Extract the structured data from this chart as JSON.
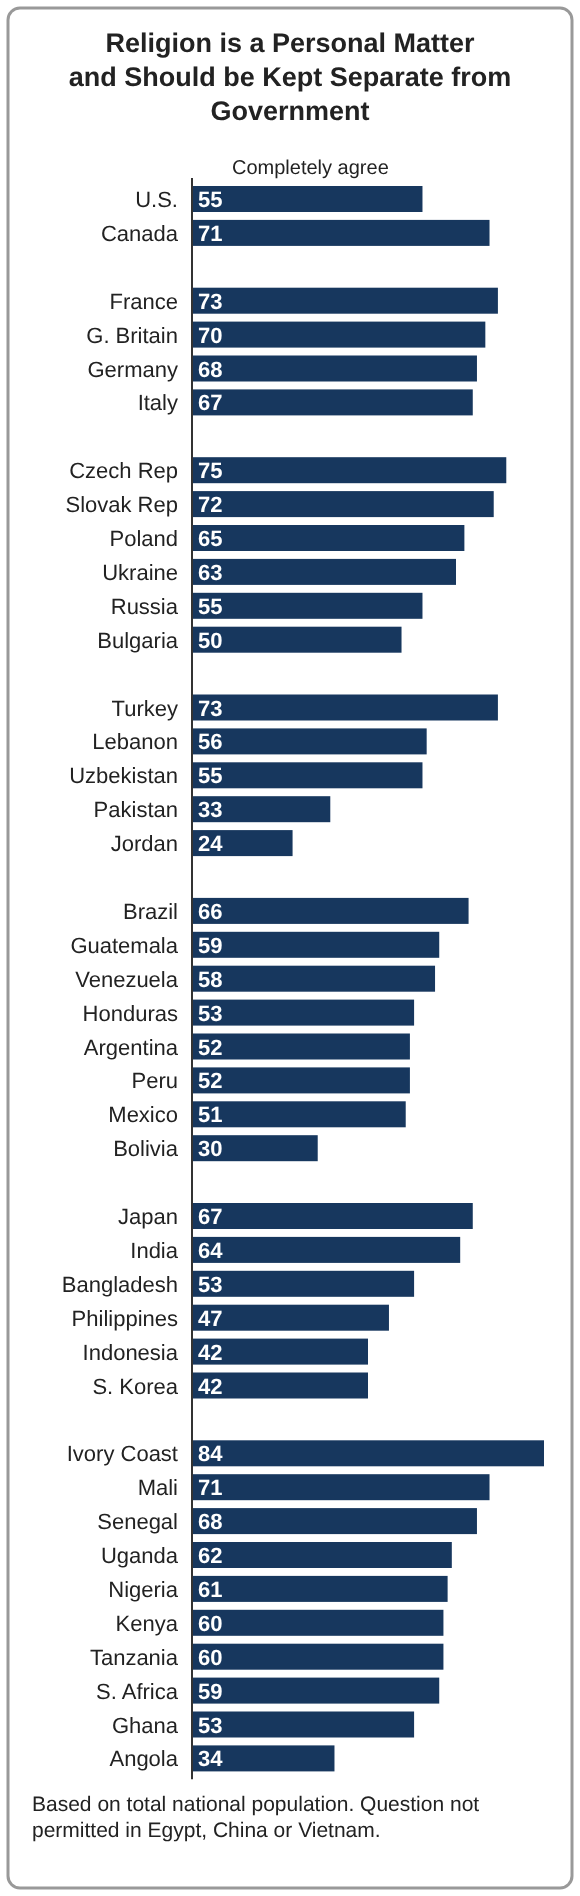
{
  "chart_data": {
    "type": "bar",
    "orientation": "horizontal",
    "title": "Religion is a Personal Matter and Should be Kept Separate from Government",
    "xlabel": "Completely agree",
    "categories": [
      "U.S.",
      "Canada",
      null,
      "France",
      "G. Britain",
      "Germany",
      "Italy",
      null,
      "Czech Rep",
      "Slovak Rep",
      "Poland",
      "Ukraine",
      "Russia",
      "Bulgaria",
      null,
      "Turkey",
      "Lebanon",
      "Uzbekistan",
      "Pakistan",
      "Jordan",
      null,
      "Brazil",
      "Guatemala",
      "Venezuela",
      "Honduras",
      "Argentina",
      "Peru",
      "Mexico",
      "Bolivia",
      null,
      "Japan",
      "India",
      "Bangladesh",
      "Philippines",
      "Indonesia",
      "S. Korea",
      null,
      "Ivory Coast",
      "Mali",
      "Senegal",
      "Uganda",
      "Nigeria",
      "Kenya",
      "Tanzania",
      "S. Africa",
      "Ghana",
      "Angola"
    ],
    "values": [
      55,
      71,
      null,
      73,
      70,
      68,
      67,
      null,
      75,
      72,
      65,
      63,
      55,
      50,
      null,
      73,
      56,
      55,
      33,
      24,
      null,
      66,
      59,
      58,
      53,
      52,
      52,
      51,
      30,
      null,
      67,
      64,
      53,
      47,
      42,
      42,
      null,
      84,
      71,
      68,
      62,
      61,
      60,
      60,
      59,
      53,
      34
    ],
    "color": "#17375e",
    "data_labels": true,
    "annotations": [
      "Based on total national population.  Question not permitted in Egypt, China or Vietnam."
    ]
  }
}
